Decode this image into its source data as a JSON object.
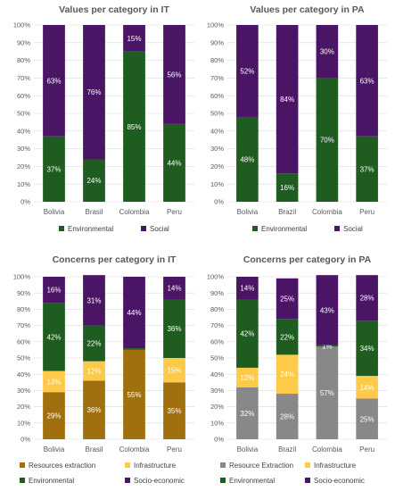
{
  "colors": {
    "Environmental": "#1e5c20",
    "Social": "#4b1565",
    "Resources extraction": "#a0700f",
    "Infrastructure": "#ffc94a",
    "Socio-economic": "#4b1565"
  },
  "chart_data": [
    {
      "type": "bar",
      "stacked": true,
      "title": "Values per category in IT",
      "categories": [
        "Bolivia",
        "Brasil",
        "Colombia",
        "Peru"
      ],
      "ylim": [
        0,
        100
      ],
      "yticks": [
        "0%",
        "10%",
        "20%",
        "30%",
        "40%",
        "50%",
        "60%",
        "70%",
        "80%",
        "90%",
        "100%"
      ],
      "grid": true,
      "legend_position": "bottom",
      "series": [
        {
          "name": "Environmental",
          "values": [
            37,
            24,
            85,
            44
          ],
          "labels": [
            "37%",
            "24%",
            "85%",
            "44%"
          ]
        },
        {
          "name": "Social",
          "values": [
            63,
            76,
            15,
            56
          ],
          "labels": [
            "63%",
            "76%",
            "15%",
            "56%"
          ]
        }
      ]
    },
    {
      "type": "bar",
      "stacked": true,
      "title": "Values per category in PA",
      "categories": [
        "Bolivia",
        "Brazil",
        "Colombia",
        "Peru"
      ],
      "ylim": [
        0,
        100
      ],
      "yticks": [
        "0%",
        "10%",
        "20%",
        "30%",
        "40%",
        "50%",
        "60%",
        "70%",
        "80%",
        "90%",
        "100%"
      ],
      "grid": true,
      "legend_position": "bottom",
      "series": [
        {
          "name": "Environmental",
          "values": [
            48,
            16,
            70,
            37
          ],
          "labels": [
            "48%",
            "16%",
            "70%",
            "37%"
          ]
        },
        {
          "name": "Social",
          "values": [
            52,
            84,
            30,
            63
          ],
          "labels": [
            "52%",
            "84%",
            "30%",
            "63%"
          ]
        }
      ]
    },
    {
      "type": "bar",
      "stacked": true,
      "title": "Concerns per category in IT",
      "categories": [
        "Bolivia",
        "Brasil",
        "Colombia",
        "Peru"
      ],
      "ylim": [
        0,
        100
      ],
      "yticks": [
        "0%",
        "10%",
        "20%",
        "30%",
        "40%",
        "50%",
        "60%",
        "70%",
        "80%",
        "90%",
        "100%"
      ],
      "grid": true,
      "legend_position": "bottom",
      "series": [
        {
          "name": "Resources extraction",
          "values": [
            29,
            36,
            55,
            35
          ],
          "labels": [
            "29%",
            "36%",
            "55%",
            "35%"
          ]
        },
        {
          "name": "Infrastructure",
          "values": [
            13,
            12,
            0,
            15
          ],
          "labels": [
            "13%",
            "12%",
            "",
            "15%"
          ]
        },
        {
          "name": "Environmental",
          "values": [
            42,
            22,
            1,
            36
          ],
          "labels": [
            "42%",
            "22%",
            "",
            "36%"
          ]
        },
        {
          "name": "Socio-economic",
          "values": [
            16,
            31,
            44,
            14
          ],
          "labels": [
            "16%",
            "31%",
            "44%",
            "14%"
          ]
        }
      ]
    },
    {
      "type": "bar",
      "stacked": true,
      "title": "Concerns per category in PA",
      "categories": [
        "Bolivia",
        "Brazil",
        "Colombia",
        "Peru"
      ],
      "ylim": [
        0,
        100
      ],
      "yticks": [
        "0%",
        "10%",
        "20%",
        "30%",
        "40%",
        "50%",
        "60%",
        "70%",
        "80%",
        "90%",
        "100%"
      ],
      "grid": true,
      "legend_position": "bottom",
      "series": [
        {
          "name": "Resource Extraction",
          "values": [
            32,
            28,
            57,
            25
          ],
          "labels": [
            "32%",
            "28%",
            "57%",
            "25%"
          ]
        },
        {
          "name": "Infrastructure",
          "values": [
            12,
            24,
            0,
            14
          ],
          "labels": [
            "12%",
            "24%",
            "",
            "14%"
          ]
        },
        {
          "name": "Environmental",
          "values": [
            42,
            22,
            1,
            34
          ],
          "labels": [
            "42%",
            "22%",
            "1%",
            "34%"
          ]
        },
        {
          "name": "Socio-economic",
          "values": [
            14,
            25,
            43,
            28
          ],
          "labels": [
            "14%",
            "25%",
            "43%",
            "28%"
          ]
        }
      ]
    }
  ]
}
